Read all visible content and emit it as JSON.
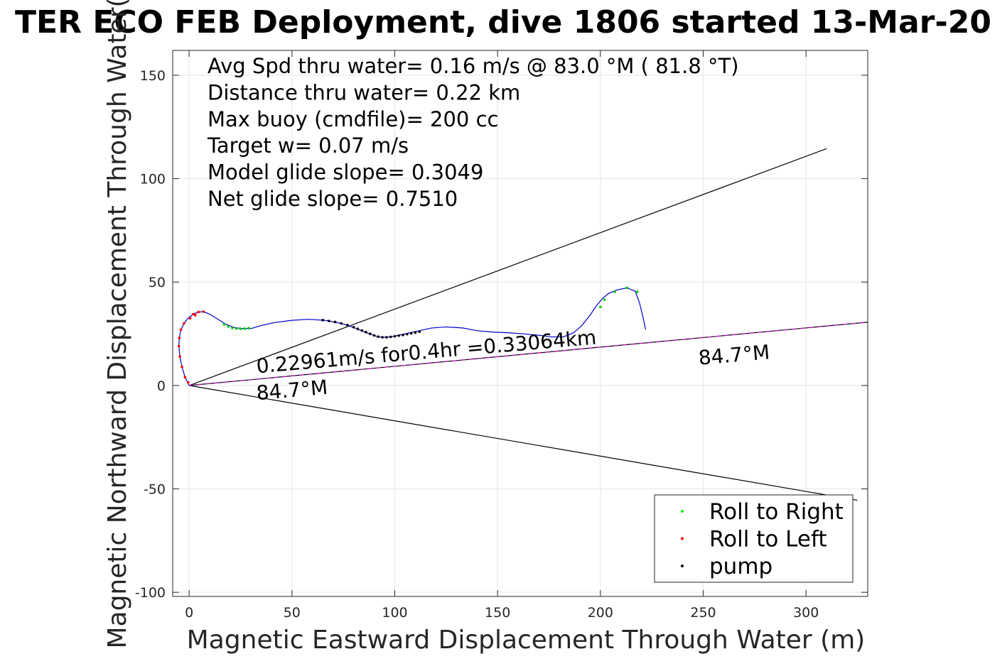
{
  "chart_data": {
    "type": "line",
    "title": "TER ECO FEB Deployment, dive 1806 started 13-Mar-20",
    "xlabel": "Magnetic Eastward Displacement Through Water (m)",
    "ylabel": "Magnetic Northward Displacement Through Water(",
    "xlim": [
      -8,
      330
    ],
    "ylim": [
      -102,
      162
    ],
    "xticks": [
      0,
      50,
      100,
      150,
      200,
      250,
      300
    ],
    "yticks": [
      -100,
      -50,
      0,
      50,
      100,
      150
    ],
    "xtick_labels": [
      "0",
      "50",
      "100",
      "150",
      "200",
      "250",
      "300"
    ],
    "ytick_labels": [
      "-100",
      "-50",
      "0",
      "50",
      "100",
      "150"
    ],
    "grid": true,
    "info_lines": [
      "Avg Spd thru water=  0.16 m/s @  83.0 °M ( 81.8 °T)",
      "Distance thru water=  0.22 km",
      "Max buoy (cmdfile)= 200 cc",
      "Target w= 0.07 m/s",
      "Model glide slope= 0.3049",
      "Net glide slope= 0.7510"
    ],
    "annotations": [
      {
        "text": "0.22961m/s for0.4hr =0.33064km",
        "x": 33,
        "y": 6,
        "rotation_deg": -4.9
      },
      {
        "text": "84.7°M",
        "x": 33,
        "y": -7,
        "rotation_deg": -4.9
      },
      {
        "text": "84.7°M",
        "x": 248,
        "y": 10,
        "rotation_deg": -4.9
      }
    ],
    "reference_lines": [
      {
        "name": "cone-upper",
        "color": "#000000",
        "points": [
          [
            0,
            0
          ],
          [
            310,
            114.5
          ]
        ]
      },
      {
        "name": "cone-lower",
        "color": "#000000",
        "points": [
          [
            0,
            0
          ],
          [
            325,
            -55.5
          ]
        ]
      },
      {
        "name": "current-heading",
        "color": "#000000",
        "overlay_color": "#cc00cc",
        "points": [
          [
            0,
            0
          ],
          [
            330,
            30.6
          ]
        ]
      }
    ],
    "series": [
      {
        "name": "track",
        "color": "#0000cc",
        "x": [
          0,
          -2,
          -3.5,
          -4.5,
          -5,
          -4.8,
          -4,
          -2.5,
          -0.5,
          2,
          4.5,
          7,
          10,
          14,
          18,
          22,
          26,
          30,
          35,
          42,
          50,
          58,
          66,
          74,
          80,
          85,
          89,
          92,
          95,
          98,
          102,
          106,
          112,
          118,
          125,
          133,
          140,
          148,
          155,
          162,
          170,
          176,
          182,
          187,
          191,
          195,
          198,
          201,
          204,
          208,
          213,
          217,
          219,
          220.5,
          222
        ],
        "y": [
          0,
          4,
          9,
          14,
          19,
          23,
          27,
          30,
          32.5,
          34.5,
          35.5,
          35.7,
          34.5,
          32,
          29.5,
          28,
          27.5,
          27.5,
          29,
          30.5,
          31.5,
          32,
          31.5,
          30,
          28,
          26,
          24.5,
          23.5,
          23.3,
          23.5,
          24.3,
          25.2,
          26.5,
          27.8,
          28.3,
          27.8,
          26.5,
          25.8,
          25.5,
          25,
          24.3,
          23.5,
          23.5,
          25.5,
          29,
          34,
          38.5,
          42,
          44.5,
          46.2,
          47.2,
          45.5,
          40,
          34,
          27
        ]
      }
    ],
    "markers": {
      "roll_right": {
        "color": "#00cc00",
        "x": [
          17,
          19,
          21,
          23,
          25,
          27,
          29,
          200,
          202,
          207,
          213,
          218
        ],
        "y": [
          29.5,
          28.5,
          27.8,
          27.5,
          27.4,
          27.5,
          27.7,
          38,
          41.5,
          45.3,
          47.2,
          45.3
        ]
      },
      "roll_left": {
        "color": "#ff0000",
        "x": [
          -0.5,
          -2,
          -3.5,
          -4.5,
          -5,
          -4.8,
          -4,
          -2.5,
          0.5,
          2,
          4.5,
          7,
          3
        ],
        "y": [
          1.5,
          4,
          9,
          14,
          19,
          23,
          27,
          30,
          32.5,
          34.5,
          35.5,
          35.7,
          34
        ]
      },
      "pump": {
        "color": "#000000",
        "x": [
          65,
          68,
          71,
          74,
          77,
          80,
          82,
          84,
          86,
          88,
          90,
          92,
          94,
          96,
          98,
          100,
          102,
          104,
          106,
          108,
          110,
          112
        ],
        "y": [
          31.6,
          31.2,
          30.7,
          30,
          29.2,
          28.2,
          27.4,
          26.6,
          25.8,
          25,
          24.2,
          23.6,
          23.3,
          23.3,
          23.5,
          23.8,
          24.1,
          24.4,
          24.8,
          25.2,
          25.6,
          26
        ]
      }
    },
    "legend": {
      "placement": "bottom-right",
      "entries": [
        {
          "label": "Roll to Right",
          "color": "#00ff00"
        },
        {
          "label": "Roll to Left",
          "color": "#ff0000"
        },
        {
          "label": "pump",
          "color": "#000000"
        }
      ]
    }
  }
}
